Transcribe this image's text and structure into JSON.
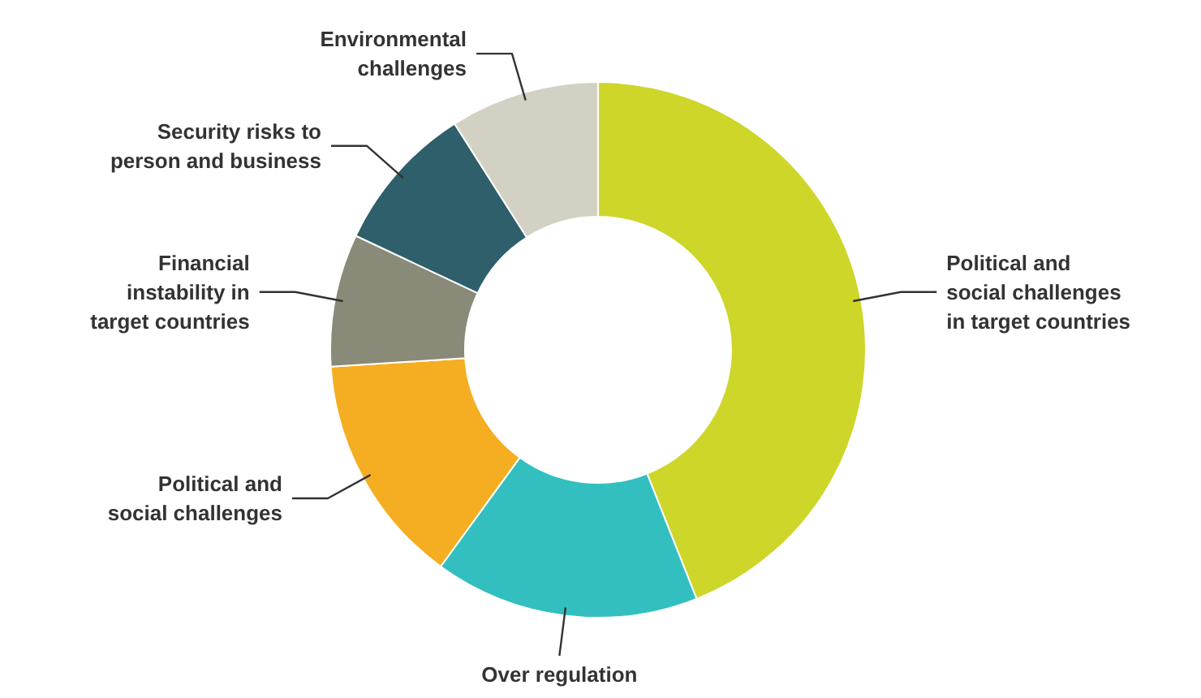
{
  "chart_data": {
    "type": "donut",
    "categories": [
      "Political and social challenges in target countries",
      "Over regulation",
      "Political and social challenges",
      "Financial instability in target countries",
      "Security risks to person and business",
      "Environmental challenges"
    ],
    "values": [
      44,
      16,
      14,
      8,
      9,
      9
    ],
    "colors": [
      "#cdd629",
      "#33bfbf",
      "#f5ae22",
      "#8a8a78",
      "#2e5f6b",
      "#d3d1c3"
    ]
  }
}
